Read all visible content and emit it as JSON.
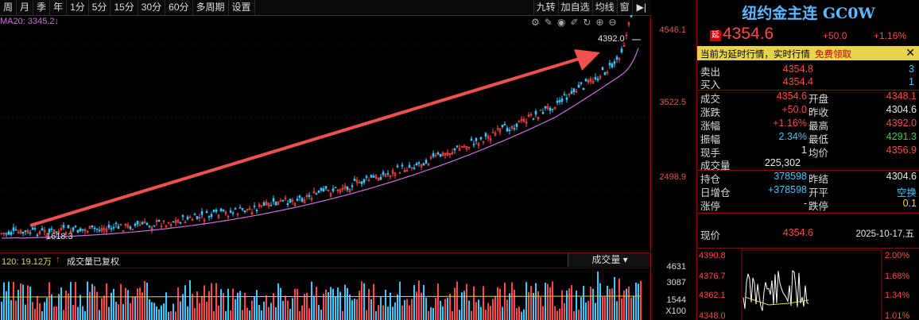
{
  "toolbar": {
    "periods": [
      "周",
      "月",
      "季",
      "年",
      "1分",
      "5分",
      "15分",
      "30分",
      "60分",
      "多周期",
      "设置"
    ],
    "right_buttons": [
      "九转",
      "加自选",
      "均线",
      "窗"
    ]
  },
  "ma": {
    "label": "MA20:",
    "value": "3345.2",
    "arrow": "↓"
  },
  "main_chart": {
    "axis_labels": [
      "4546.1",
      "3522.5",
      "2498.9"
    ],
    "high_label": "4392.0",
    "low_label": "1618.3"
  },
  "volume": {
    "ma_label": "120: 19.12万",
    "ma_arrow": "↑",
    "adj_label": "成交量已复权",
    "select": "成交量",
    "axis_labels": [
      "4631",
      "3087",
      "1544",
      "X100"
    ]
  },
  "side": {
    "title": "纽约金主连 GC0W",
    "delay_badge": "延",
    "price": "4354.6",
    "change": "+50.0",
    "change_pct": "+1.16%",
    "notice": "当前为延时行情，实时行情",
    "notice_link": "免费领取",
    "sell_label": "卖出",
    "sell_price": "4354.8",
    "sell_qty": "3",
    "buy_label": "买入",
    "buy_price": "4354.4",
    "buy_qty": "1",
    "rows": [
      {
        "k1": "成交",
        "v1": "4354.6",
        "k2": "开盘",
        "v2": "4348.1"
      },
      {
        "k1": "涨跌",
        "v1": "+50.0",
        "k2": "昨收",
        "v2": "4304.6"
      },
      {
        "k1": "涨幅",
        "v1": "+1.16%",
        "k2": "最高",
        "v2": "4392.0"
      },
      {
        "k1": "振幅",
        "v1": "2.34%",
        "k2": "最低",
        "v2": "4291.3"
      },
      {
        "k1": "现手",
        "v1": "1",
        "k2": "均价",
        "v2": "4356.9"
      }
    ],
    "volume_label": "成交量",
    "volume_value": "225,302",
    "rows2": [
      {
        "k1": "持仓",
        "v1": "378598",
        "k2": "昨结",
        "v2": "4304.6"
      },
      {
        "k1": "日增仓",
        "v1": "+378598",
        "k2": "开平",
        "v2": "空换"
      },
      {
        "k1": "涨停",
        "v1": "-",
        "k2": "跌停",
        "v2": "0.1"
      }
    ],
    "now_label": "现价",
    "now_value": "4354.6",
    "date": "2025-10-17,五",
    "mini_left": [
      "4390.8",
      "4376.7",
      "4362.1",
      "4348.0"
    ],
    "mini_right": [
      "2.00%",
      "1.68%",
      "1.34%",
      "1.01%"
    ]
  },
  "colors": {
    "up": "#ff4747",
    "down": "#3bc7ff",
    "ma": "#cf6ce0",
    "arrow": "#f05050"
  }
}
